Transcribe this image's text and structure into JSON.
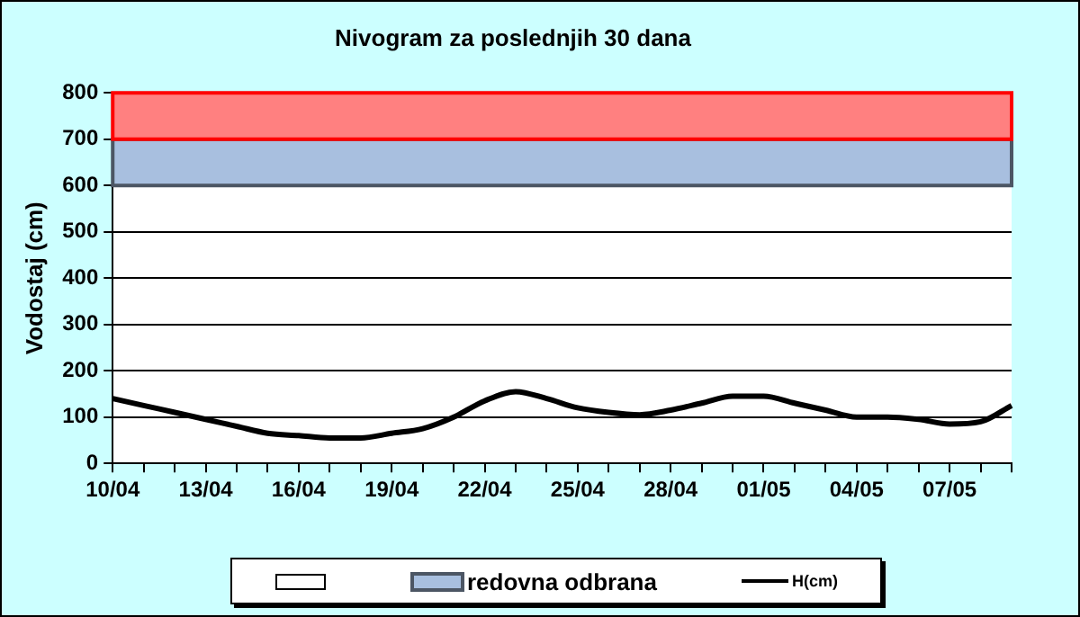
{
  "chart_data": {
    "type": "line",
    "title": "Nivogram za poslednjih 30 dana",
    "ylabel": "Vodostaj (cm)",
    "categories": [
      "10/04",
      null,
      null,
      "13/04",
      null,
      null,
      "16/04",
      null,
      null,
      "19/04",
      null,
      null,
      "22/04",
      null,
      null,
      "25/04",
      null,
      null,
      "28/04",
      null,
      null,
      "01/05",
      null,
      null,
      "04/05",
      null,
      null,
      "07/05",
      null,
      null
    ],
    "series": [
      {
        "name": "H(cm)",
        "color": "#000000",
        "values": [
          140,
          125,
          110,
          95,
          80,
          65,
          60,
          55,
          55,
          65,
          75,
          100,
          135,
          155,
          140,
          120,
          110,
          105,
          115,
          130,
          145,
          145,
          130,
          115,
          100,
          100,
          95,
          85,
          90,
          125
        ]
      }
    ],
    "bands": [
      {
        "axis": "y",
        "from": 600,
        "to": 700,
        "label": "redovna odbrana",
        "color": "#a8bfdf"
      },
      {
        "axis": "y",
        "from": 700,
        "to": 800,
        "color": "#ff8080"
      }
    ],
    "ylim": [
      0,
      800
    ],
    "yticks": [
      0,
      100,
      200,
      300,
      400,
      500,
      600,
      700,
      800
    ],
    "grid": "y",
    "legend": "bottom",
    "marker": "none",
    "line_style": "solid"
  }
}
